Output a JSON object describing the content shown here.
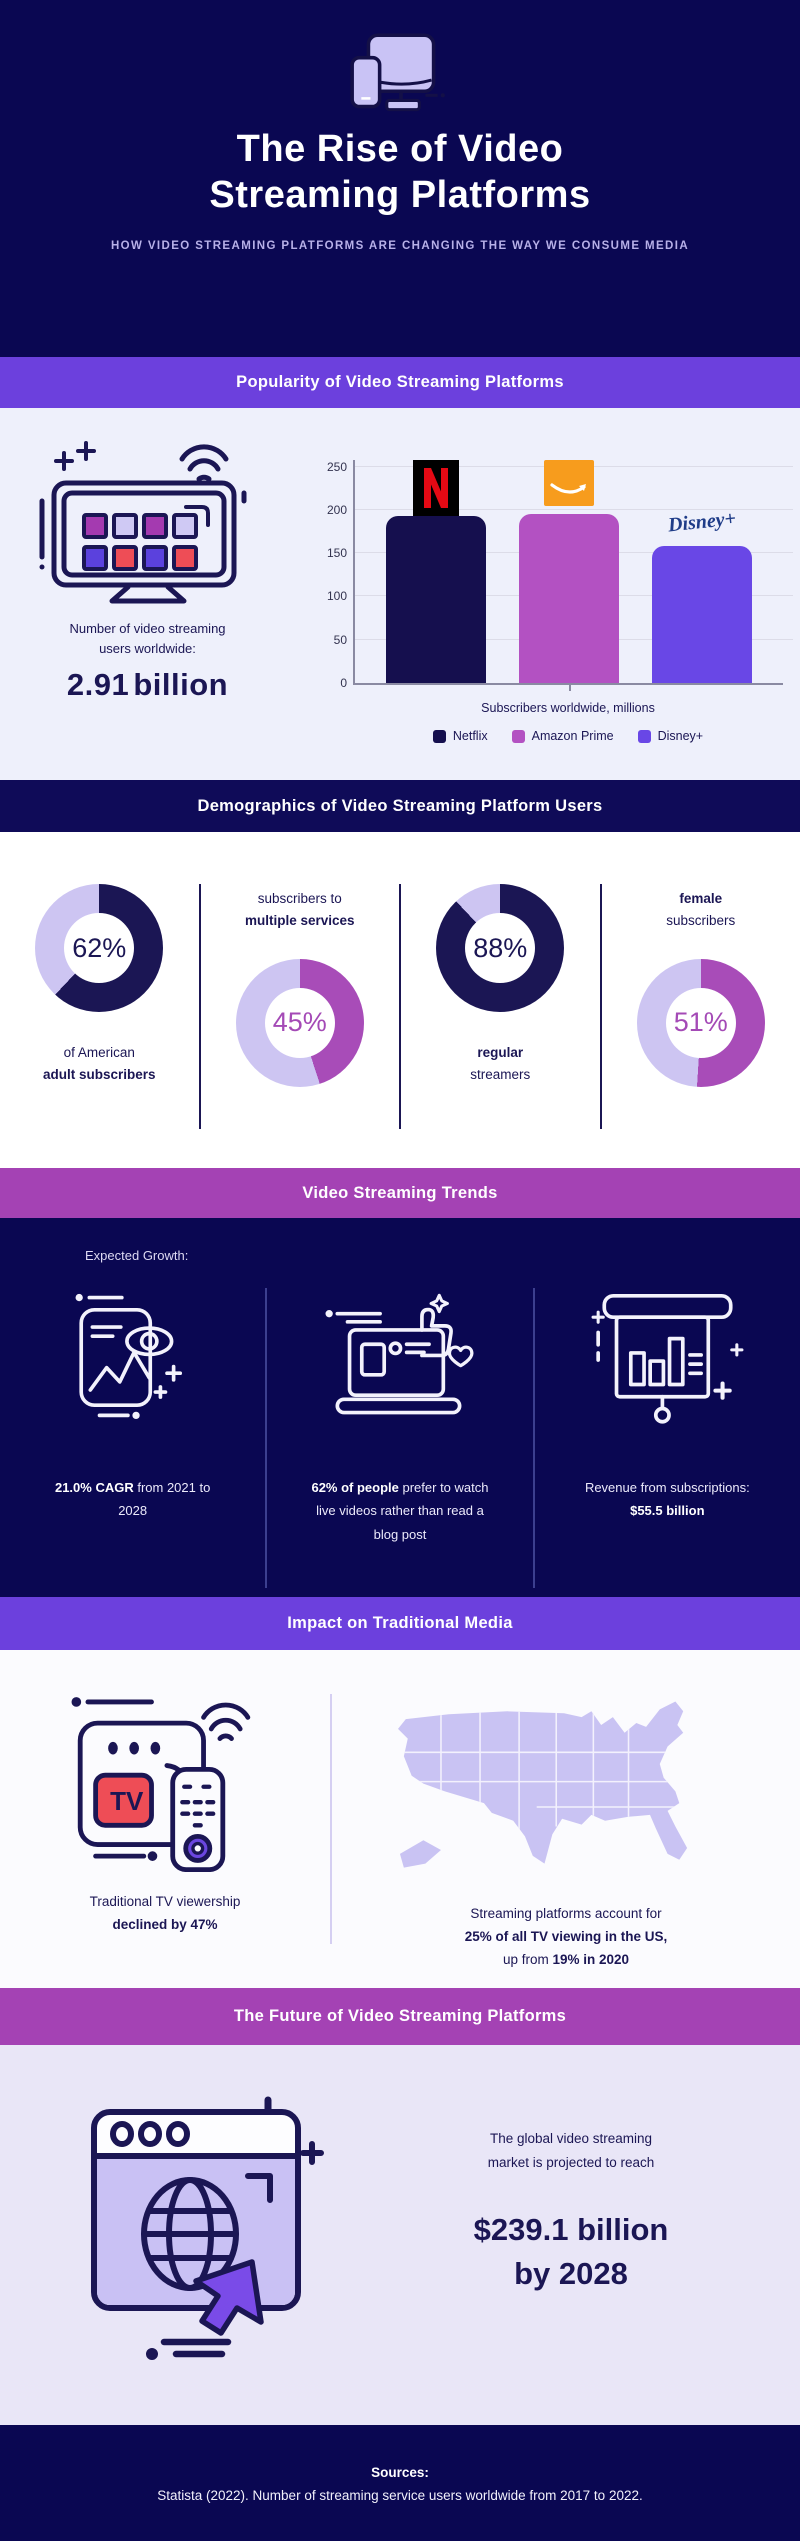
{
  "header": {
    "title_line1": "The Rise of Video",
    "title_line2": "Streaming Platforms",
    "subtitle": "HOW VIDEO STREAMING PLATFORMS ARE CHANGING THE WAY WE CONSUME MEDIA"
  },
  "popularity": {
    "banner": "Popularity of Video Streaming Platforms",
    "users_caption_line1": "Number of video streaming",
    "users_caption_line2": "users worldwide:",
    "users_value": "2.91 billion"
  },
  "demographics": {
    "banner": "Demographics of Video Streaming Platform Users",
    "items": [
      {
        "value": "62%",
        "normal": "of American",
        "bold": "adult subscribers"
      },
      {
        "value": "45%",
        "normal": "subscribers to",
        "bold": "multiple services"
      },
      {
        "value": "88%",
        "bold": "regular",
        "normal": "streamers"
      },
      {
        "value": "51%",
        "bold": "female",
        "normal": "subscribers"
      }
    ]
  },
  "trends": {
    "banner": "Video Streaming Trends",
    "expected_growth": "Expected Growth:",
    "cards": [
      {
        "pre": "",
        "bold": "21.0% CAGR",
        "post": " from 2021 to 2028"
      },
      {
        "pre": "",
        "bold": "62% of people",
        "post": " prefer to watch live videos rather than read a blog post"
      },
      {
        "pre": "Revenue from subscriptions: ",
        "bold": "$55.5 billion",
        "post": ""
      }
    ]
  },
  "impact": {
    "banner": "Impact on Traditional Media",
    "tv_label": "TV",
    "left_line1": "Traditional TV viewership",
    "left_line2": "declined by 47%",
    "right_line1": "Streaming platforms account for",
    "right_line2": "25% of all TV viewing in the US,",
    "right_line3_pre": "up from ",
    "right_line3_bold": "19% in 2020"
  },
  "future": {
    "banner": "The Future of Video Streaming Platforms",
    "intro_line1": "The global video streaming",
    "intro_line2": "market is projected to reach",
    "amount_line1": "$239.1 billion",
    "amount_line2": "by 2028"
  },
  "footer": {
    "heading": "Sources:",
    "line": "Statista (2022). Number of streaming service users worldwide from 2017 to 2022."
  },
  "chart_data": [
    {
      "type": "bar",
      "title": "Subscribers worldwide by platform",
      "categories": [
        "Netflix",
        "Amazon Prime",
        "Disney+"
      ],
      "values": [
        208,
        198,
        160
      ],
      "xlabel": "Subscribers worldwide, millions",
      "ylabel": "",
      "ylim": [
        0,
        260
      ],
      "yticks": [
        0,
        50,
        100,
        150,
        200,
        250
      ],
      "colors": [
        "#150f4e",
        "#b351c2",
        "#6947e6"
      ],
      "grid": true,
      "legend_position": "bottom"
    },
    {
      "type": "pie",
      "variant": "donut-group",
      "donuts": [
        {
          "label": "of American adult subscribers",
          "value": 62,
          "color": "#1b1654",
          "track": "#cdc5f2"
        },
        {
          "label": "subscribers to multiple services",
          "value": 45,
          "color": "#a84cb8",
          "track": "#cdc5f2"
        },
        {
          "label": "regular streamers",
          "value": 88,
          "color": "#1b1654",
          "track": "#cdc5f2"
        },
        {
          "label": "female subscribers",
          "value": 51,
          "color": "#a84cb8",
          "track": "#cdc5f2"
        }
      ]
    }
  ]
}
